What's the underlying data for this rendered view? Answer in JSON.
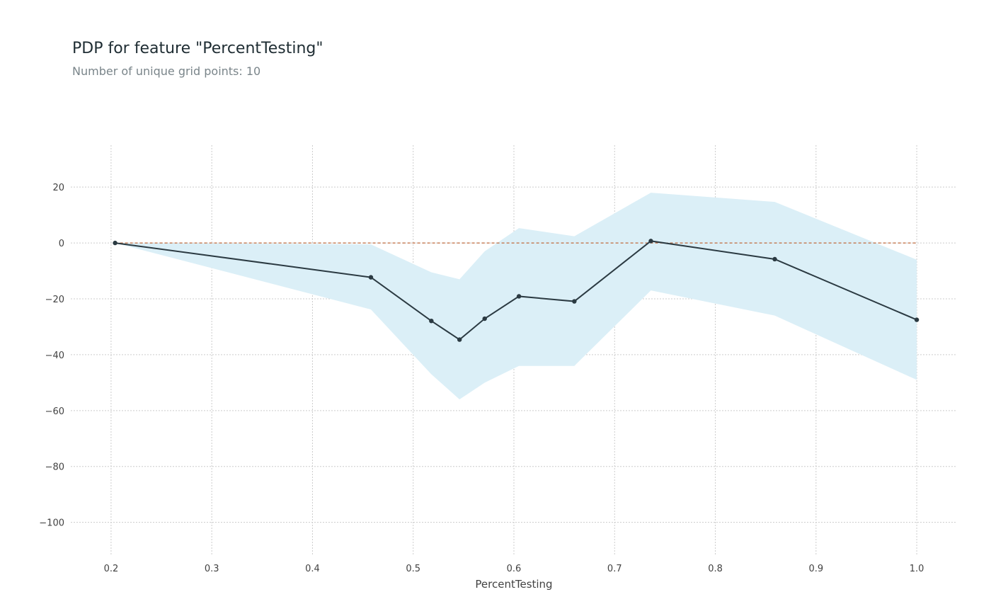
{
  "chart_data": {
    "type": "line",
    "title": "PDP for feature \"PercentTesting\"",
    "subtitle": "Number of unique grid points: 10",
    "xlabel": "PercentTesting",
    "ylabel": "",
    "xlim": [
      0.16,
      1.04
    ],
    "ylim": [
      -112,
      35
    ],
    "xticks": [
      0.2,
      0.3,
      0.4,
      0.5,
      0.6,
      0.7,
      0.8,
      0.9,
      1.0
    ],
    "xtick_labels": [
      "0.2",
      "0.3",
      "0.4",
      "0.5",
      "0.6",
      "0.7",
      "0.8",
      "0.9",
      "1.0"
    ],
    "yticks": [
      20,
      0,
      -20,
      -40,
      -60,
      -80,
      -100
    ],
    "ytick_labels": [
      "20",
      "0",
      "−20",
      "−40",
      "−60",
      "−80",
      "−100"
    ],
    "grid": true,
    "reference_line": 0,
    "x": [
      0.204,
      0.458,
      0.518,
      0.546,
      0.571,
      0.605,
      0.66,
      0.736,
      0.859,
      1.0
    ],
    "series": [
      {
        "values": [
          0,
          -12.3,
          -27.9,
          -34.6,
          -27.1,
          -19.1,
          -20.9,
          0.7,
          -5.8,
          -27.5
        ],
        "lower": [
          0,
          -23.8,
          -47,
          -56,
          -50,
          -44,
          -44,
          -17,
          -26,
          -49
        ],
        "upper": [
          0,
          -0.5,
          -10.5,
          -13,
          -3,
          5.3,
          2.4,
          18,
          14.7,
          -6
        ]
      }
    ],
    "colors": {
      "line": "#2b3a42",
      "band": "#dbeff7",
      "reference_line": "#bf6a3c",
      "grid": "#cccccc",
      "title": "#1f2d33",
      "subtitle": "#7a858a",
      "ticks": "#424242"
    }
  }
}
